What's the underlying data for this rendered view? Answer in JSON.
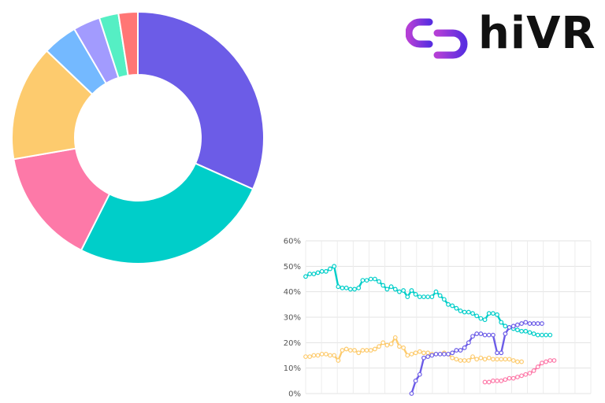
{
  "brand": {
    "name": "hiVR",
    "icon": "link-chain-icon"
  },
  "colors": {
    "purple": "#6c5ce7",
    "teal": "#00cec9",
    "pink": "#fd79a8",
    "yellow": "#fdcb6e",
    "blue": "#74b9ff",
    "lavender": "#a29bfe",
    "mint": "#55efc4",
    "red": "#ff7675"
  },
  "chart_data": [
    {
      "type": "pie",
      "subtype": "donut",
      "values": [
        32,
        26,
        15,
        15,
        4.5,
        3.5,
        2.5,
        2.5
      ],
      "slice_colors": [
        "#6c5ce7",
        "#00cec9",
        "#fd79a8",
        "#fdcb6e",
        "#74b9ff",
        "#a29bfe",
        "#55efc4",
        "#ff7675"
      ]
    },
    {
      "type": "line",
      "ylim": [
        0,
        60
      ],
      "y_ticks": [
        "0%",
        "10%",
        "20%",
        "30%",
        "40%",
        "50%",
        "60%"
      ],
      "x_count": 70,
      "grid": true,
      "series": [
        {
          "color": "#00cec9",
          "points": [
            [
              0,
              46
            ],
            [
              1,
              47
            ],
            [
              2,
              47
            ],
            [
              3,
              47.5
            ],
            [
              4,
              48
            ],
            [
              5,
              48
            ],
            [
              6,
              49
            ],
            [
              7,
              50
            ],
            [
              8,
              42
            ],
            [
              9,
              41.5
            ],
            [
              10,
              41.5
            ],
            [
              11,
              41
            ],
            [
              12,
              41
            ],
            [
              13,
              41.5
            ],
            [
              14,
              44.5
            ],
            [
              15,
              44.5
            ],
            [
              16,
              45
            ],
            [
              17,
              45
            ],
            [
              18,
              44
            ],
            [
              19,
              42.5
            ],
            [
              20,
              41
            ],
            [
              21,
              42
            ],
            [
              22,
              41
            ],
            [
              23,
              40
            ],
            [
              24,
              40.5
            ],
            [
              25,
              38
            ],
            [
              26,
              40.5
            ],
            [
              27,
              39
            ],
            [
              28,
              38
            ],
            [
              29,
              38
            ],
            [
              30,
              38
            ],
            [
              31,
              38
            ],
            [
              32,
              40
            ],
            [
              33,
              38.5
            ],
            [
              34,
              37
            ],
            [
              35,
              35
            ],
            [
              36,
              34.5
            ],
            [
              37,
              33.5
            ],
            [
              38,
              32.5
            ],
            [
              39,
              32
            ],
            [
              40,
              32
            ],
            [
              41,
              31.5
            ],
            [
              42,
              30.5
            ],
            [
              43,
              29.5
            ],
            [
              44,
              29
            ],
            [
              45,
              31.5
            ],
            [
              46,
              31.5
            ],
            [
              47,
              31
            ],
            [
              48,
              28
            ],
            [
              49,
              26.5
            ],
            [
              50,
              26
            ],
            [
              51,
              25.5
            ],
            [
              52,
              25
            ],
            [
              53,
              24.5
            ],
            [
              54,
              24.5
            ],
            [
              55,
              24
            ],
            [
              56,
              23.5
            ],
            [
              57,
              23
            ],
            [
              58,
              23
            ],
            [
              59,
              23
            ],
            [
              60,
              23
            ]
          ]
        },
        {
          "color": "#fdcb6e",
          "points": [
            [
              0,
              14.5
            ],
            [
              1,
              14.5
            ],
            [
              2,
              15
            ],
            [
              3,
              15
            ],
            [
              4,
              15.5
            ],
            [
              5,
              15.5
            ],
            [
              6,
              15
            ],
            [
              7,
              15
            ],
            [
              8,
              13
            ],
            [
              9,
              17
            ],
            [
              10,
              17.5
            ],
            [
              11,
              17
            ],
            [
              12,
              17
            ],
            [
              13,
              16
            ],
            [
              14,
              17
            ],
            [
              15,
              17
            ],
            [
              16,
              17
            ],
            [
              17,
              17.5
            ],
            [
              18,
              18.5
            ],
            [
              19,
              20
            ],
            [
              20,
              19
            ],
            [
              21,
              19.5
            ],
            [
              22,
              22
            ],
            [
              23,
              18.5
            ],
            [
              24,
              18
            ],
            [
              25,
              15
            ],
            [
              26,
              15.5
            ],
            [
              27,
              16
            ],
            [
              28,
              16.5
            ],
            [
              29,
              16
            ],
            [
              30,
              16
            ],
            [
              31,
              15.5
            ],
            [
              32,
              15.5
            ],
            [
              33,
              15.5
            ],
            [
              34,
              16
            ],
            [
              35,
              15.5
            ],
            [
              36,
              14
            ],
            [
              37,
              13.5
            ],
            [
              38,
              13
            ],
            [
              39,
              13
            ],
            [
              40,
              13
            ],
            [
              41,
              14.5
            ],
            [
              42,
              13.5
            ],
            [
              43,
              14
            ],
            [
              44,
              13.5
            ],
            [
              45,
              14
            ],
            [
              46,
              13.5
            ],
            [
              47,
              13.5
            ],
            [
              48,
              13.5
            ],
            [
              49,
              13.5
            ],
            [
              50,
              13.5
            ],
            [
              51,
              13
            ],
            [
              52,
              12.5
            ],
            [
              53,
              12.5
            ]
          ]
        },
        {
          "color": "#6c5ce7",
          "points": [
            [
              26,
              0
            ],
            [
              27,
              5
            ],
            [
              28,
              7.5
            ],
            [
              29,
              14
            ],
            [
              30,
              14.5
            ],
            [
              31,
              15
            ],
            [
              32,
              15.5
            ],
            [
              33,
              15.5
            ],
            [
              34,
              15.5
            ],
            [
              35,
              15.5
            ],
            [
              36,
              16
            ],
            [
              37,
              17
            ],
            [
              38,
              17
            ],
            [
              39,
              18
            ],
            [
              40,
              20
            ],
            [
              41,
              22.5
            ],
            [
              42,
              23.5
            ],
            [
              43,
              23.5
            ],
            [
              44,
              23
            ],
            [
              45,
              23
            ],
            [
              46,
              23
            ],
            [
              47,
              16
            ],
            [
              48,
              16
            ],
            [
              49,
              23.5
            ],
            [
              50,
              26
            ],
            [
              51,
              26.5
            ],
            [
              52,
              27
            ],
            [
              53,
              27.5
            ],
            [
              54,
              28
            ],
            [
              55,
              27.5
            ],
            [
              56,
              27.5
            ],
            [
              57,
              27.5
            ],
            [
              58,
              27.5
            ]
          ]
        },
        {
          "color": "#fd79a8",
          "points": [
            [
              44,
              4.5
            ],
            [
              45,
              4.5
            ],
            [
              46,
              5
            ],
            [
              47,
              5
            ],
            [
              48,
              5
            ],
            [
              49,
              5.5
            ],
            [
              50,
              6
            ],
            [
              51,
              6
            ],
            [
              52,
              6.5
            ],
            [
              53,
              7
            ],
            [
              54,
              7.5
            ],
            [
              55,
              8
            ],
            [
              56,
              9
            ],
            [
              57,
              10.5
            ],
            [
              58,
              12
            ],
            [
              59,
              12.5
            ],
            [
              60,
              13
            ],
            [
              61,
              13
            ]
          ]
        }
      ]
    }
  ]
}
